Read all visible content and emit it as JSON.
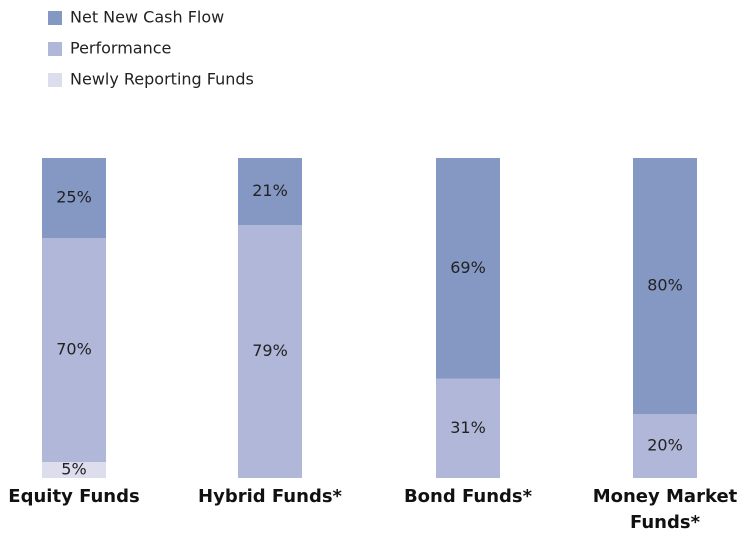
{
  "chart_data": {
    "type": "stacked-bar",
    "categories": [
      "Equity Funds",
      "Hybrid Funds*",
      "Bond Funds*",
      "Money Market Funds*"
    ],
    "series": [
      {
        "name": "Newly Reporting Funds",
        "color": "#dcdeee",
        "values": [
          5,
          null,
          null,
          null
        ],
        "value_labels": [
          "5%",
          null,
          null,
          null
        ]
      },
      {
        "name": "Performance",
        "color": "#b0b7d8",
        "values": [
          70,
          79,
          31,
          20
        ],
        "value_labels": [
          "70%",
          "79%",
          "31%",
          "20%"
        ]
      },
      {
        "name": "Net New Cash Flow",
        "color": "#8598c4",
        "values": [
          25,
          21,
          69,
          80
        ],
        "value_labels": [
          "25%",
          "21%",
          "69%",
          "80%"
        ]
      }
    ]
  }
}
